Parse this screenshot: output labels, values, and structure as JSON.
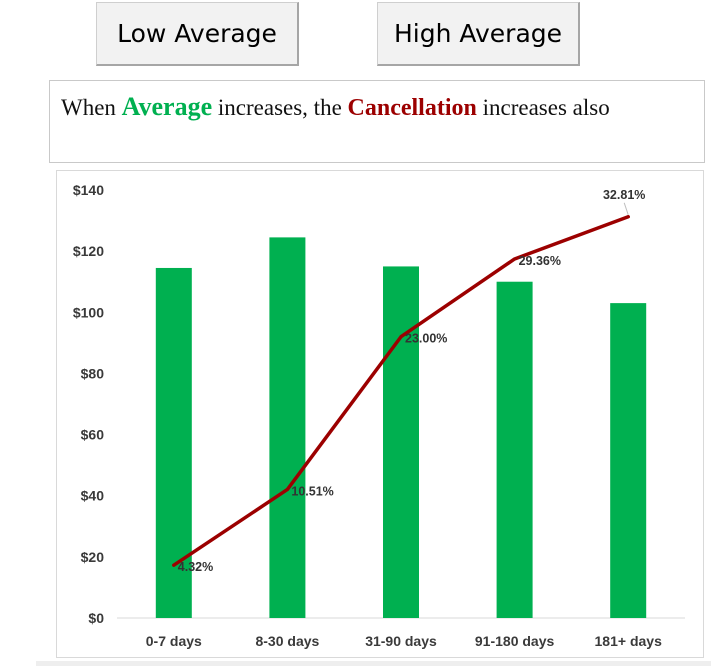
{
  "buttons": {
    "low_label": "Low Average",
    "high_label": "High Average"
  },
  "caption": {
    "part1": "When ",
    "keyword1": "Average",
    "part2": " increases, the ",
    "keyword2": "Cancellation",
    "part3": " increases also"
  },
  "colors": {
    "bar": "#00b050",
    "line": "#9c0000",
    "keyword1": "#00b050",
    "keyword2": "#9c0000"
  },
  "chart_data": {
    "type": "bar",
    "categories": [
      "0-7 days",
      "8-30 days",
      "31-90 days",
      "91-180 days",
      "181+ days"
    ],
    "series": [
      {
        "type": "bar",
        "axis": "left",
        "values": [
          114.5,
          124.5,
          115,
          110,
          103
        ]
      },
      {
        "type": "line",
        "axis": "right-hidden",
        "values": [
          4.32,
          10.51,
          23.0,
          29.36,
          32.81
        ],
        "labels": [
          "4.32%",
          "10.51%",
          "23.00%",
          "29.36%",
          "32.81%"
        ]
      }
    ],
    "yticks": [
      0,
      20,
      40,
      60,
      80,
      100,
      120,
      140
    ],
    "ytick_labels": [
      "$0",
      "$20",
      "$40",
      "$60",
      "$80",
      "$100",
      "$120",
      "$140"
    ],
    "ylim": [
      0,
      140
    ],
    "y2lim": [
      0,
      35
    ],
    "grid": false,
    "legend": "none"
  }
}
